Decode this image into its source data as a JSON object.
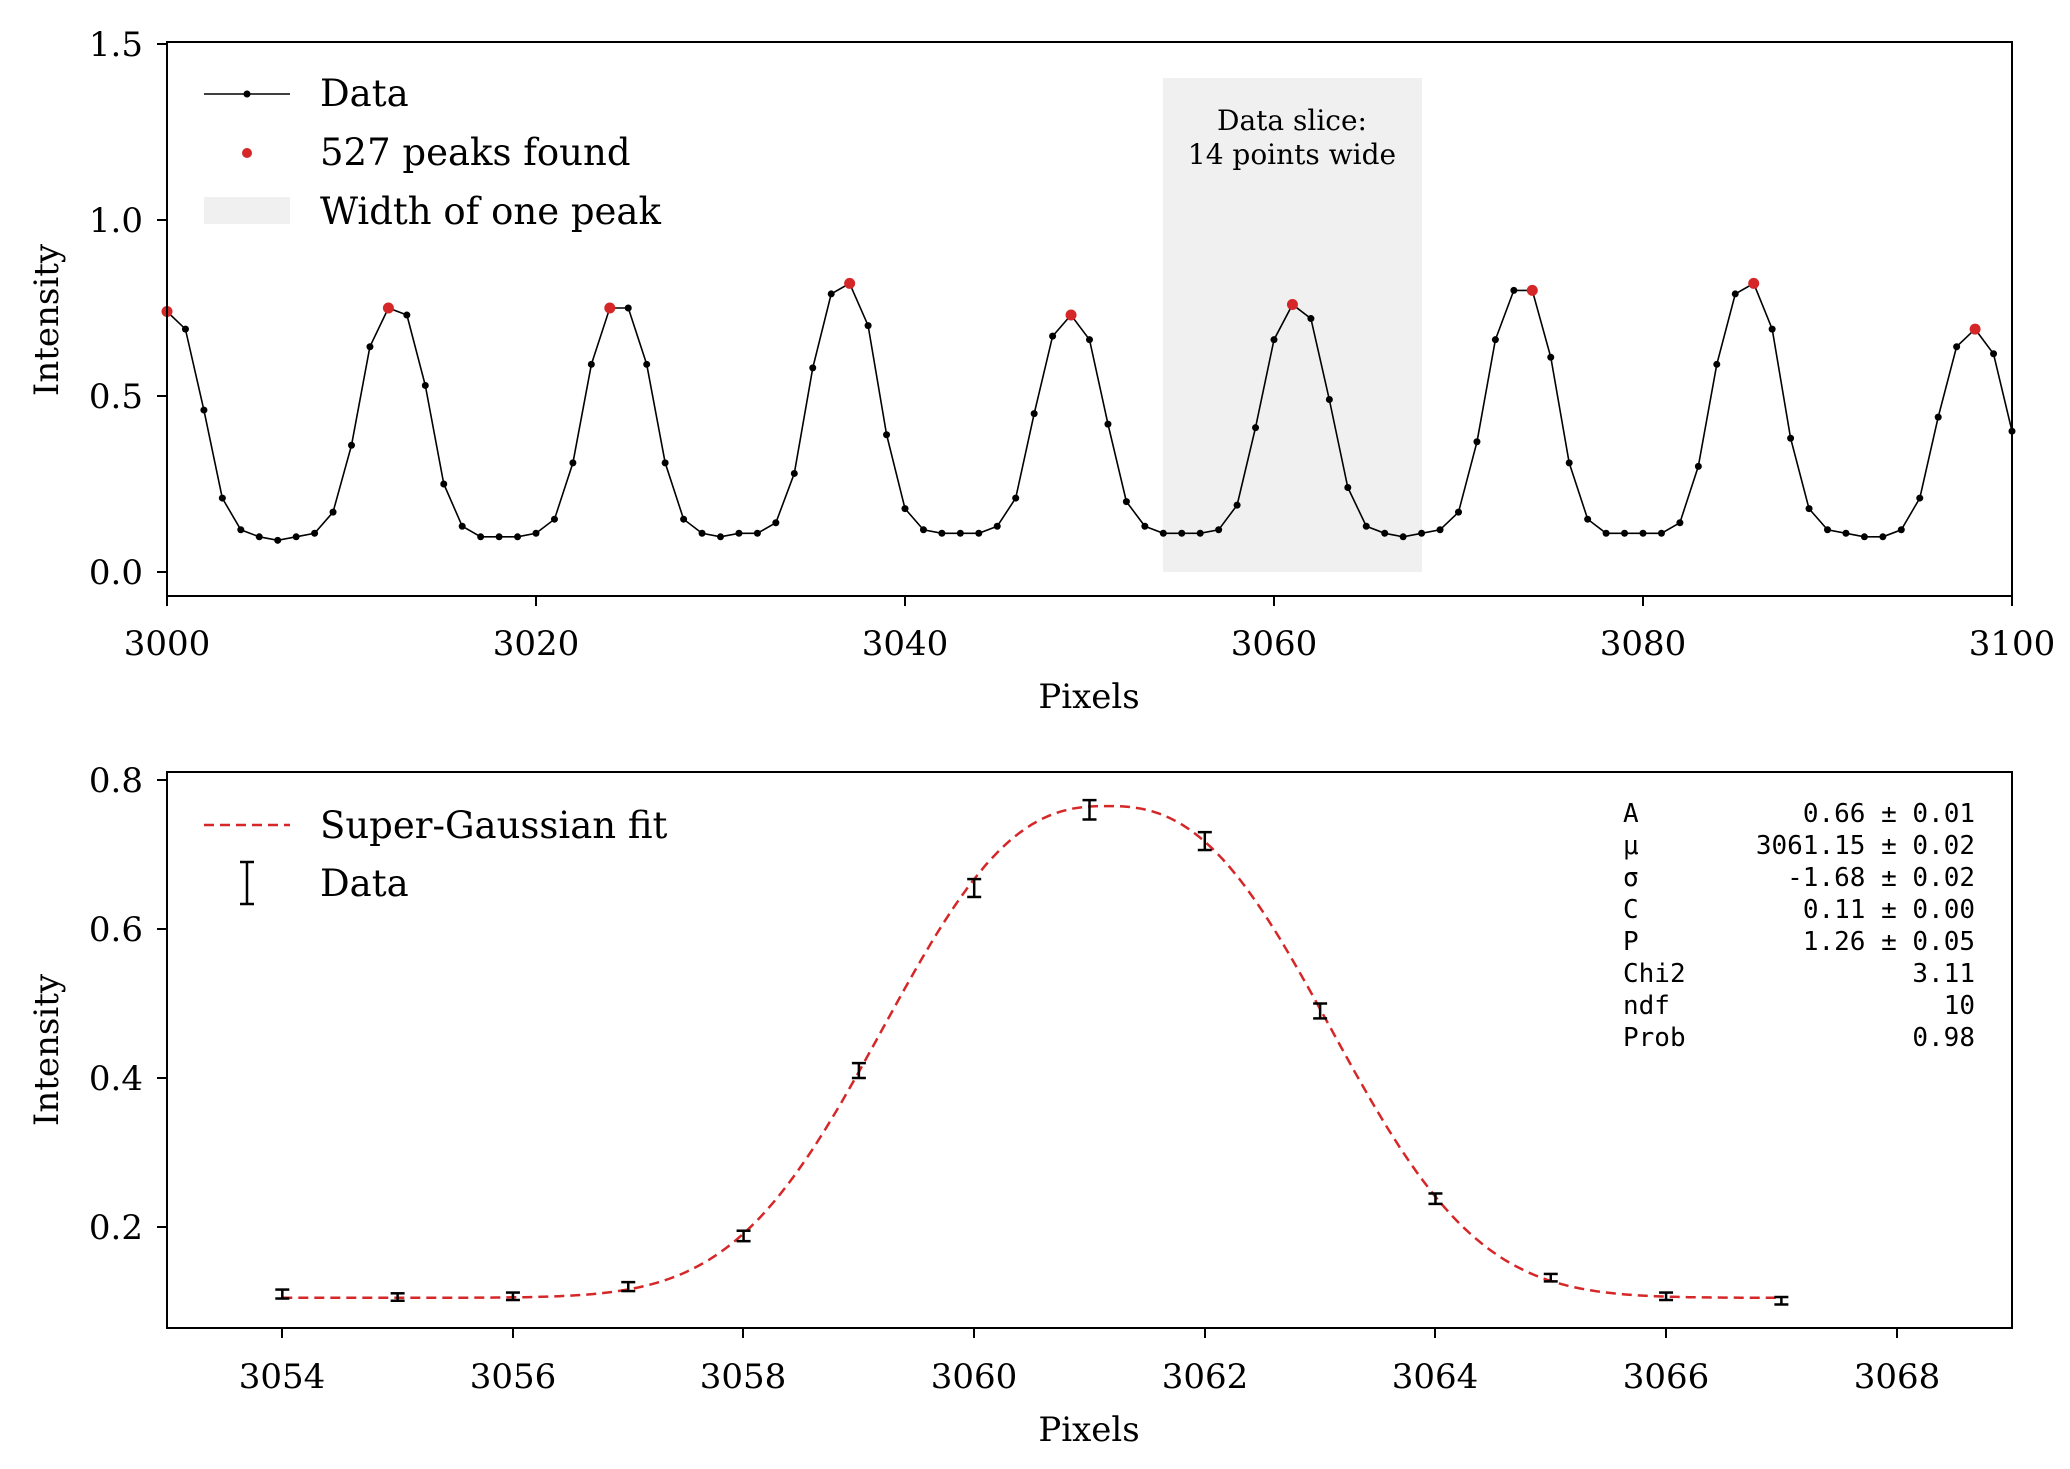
{
  "colors": {
    "data": "#000000",
    "peak": "#d62728",
    "fit": "#d62728",
    "band": "#f0f0f0"
  },
  "chart_data": [
    {
      "type": "line",
      "xlabel": "Pixels",
      "ylabel": "Intensity",
      "xlim": [
        3000,
        3100
      ],
      "ylim": [
        -0.07,
        1.5
      ],
      "xticks": [
        "3000",
        "3020",
        "3040",
        "3060",
        "3080",
        "3100"
      ],
      "yticks": [
        "0.0",
        "0.5",
        "1.0",
        "1.5"
      ],
      "grid": false,
      "legend_placement": "top-left",
      "legend": [
        "Data",
        "527 peaks found",
        "Width of one peak"
      ],
      "band": {
        "x0": 3054,
        "x1": 3068
      },
      "annotation": [
        "Data slice:",
        "14 points wide"
      ],
      "series": [
        {
          "name": "Data",
          "x": [
            3000,
            3001,
            3002,
            3003,
            3004,
            3005,
            3006,
            3007,
            3008,
            3009,
            3010,
            3011,
            3012,
            3013,
            3014,
            3015,
            3016,
            3017,
            3018,
            3019,
            3020,
            3021,
            3022,
            3023,
            3024,
            3025,
            3026,
            3027,
            3028,
            3029,
            3030,
            3031,
            3032,
            3033,
            3034,
            3035,
            3036,
            3037,
            3038,
            3039,
            3040,
            3041,
            3042,
            3043,
            3044,
            3045,
            3046,
            3047,
            3048,
            3049,
            3050,
            3051,
            3052,
            3053,
            3054,
            3055,
            3056,
            3057,
            3058,
            3059,
            3060,
            3061,
            3062,
            3063,
            3064,
            3065,
            3066,
            3067,
            3068,
            3069,
            3070,
            3071,
            3072,
            3073,
            3074,
            3075,
            3076,
            3077,
            3078,
            3079,
            3080,
            3081,
            3082,
            3083,
            3084,
            3085,
            3086,
            3087,
            3088,
            3089,
            3090,
            3091,
            3092,
            3093,
            3094,
            3095,
            3096,
            3097,
            3098,
            3099,
            3100
          ],
          "y": [
            0.74,
            0.69,
            0.46,
            0.21,
            0.12,
            0.1,
            0.09,
            0.1,
            0.11,
            0.17,
            0.36,
            0.64,
            0.75,
            0.73,
            0.53,
            0.25,
            0.13,
            0.1,
            0.1,
            0.1,
            0.11,
            0.15,
            0.31,
            0.59,
            0.75,
            0.75,
            0.59,
            0.31,
            0.15,
            0.11,
            0.1,
            0.11,
            0.11,
            0.14,
            0.28,
            0.58,
            0.79,
            0.82,
            0.7,
            0.39,
            0.18,
            0.12,
            0.11,
            0.11,
            0.11,
            0.13,
            0.21,
            0.45,
            0.67,
            0.73,
            0.66,
            0.42,
            0.2,
            0.13,
            0.11,
            0.11,
            0.11,
            0.12,
            0.19,
            0.41,
            0.66,
            0.76,
            0.72,
            0.49,
            0.24,
            0.13,
            0.11,
            0.1,
            0.11,
            0.12,
            0.17,
            0.37,
            0.66,
            0.8,
            0.8,
            0.61,
            0.31,
            0.15,
            0.11,
            0.11,
            0.11,
            0.11,
            0.14,
            0.3,
            0.59,
            0.79,
            0.82,
            0.69,
            0.38,
            0.18,
            0.12,
            0.11,
            0.1,
            0.1,
            0.12,
            0.21,
            0.44,
            0.64,
            0.69,
            0.62,
            0.4
          ]
        },
        {
          "name": "527 peaks found",
          "x": [
            3000,
            3012,
            3024,
            3037,
            3049,
            3061,
            3074,
            3086,
            3098
          ],
          "y": [
            0.74,
            0.75,
            0.75,
            0.82,
            0.73,
            0.76,
            0.8,
            0.82,
            0.69
          ]
        }
      ]
    },
    {
      "type": "line",
      "xlabel": "Pixels",
      "ylabel": "Intensity",
      "xlim": [
        3053,
        3069
      ],
      "ylim": [
        0.05,
        0.82
      ],
      "xticks": [
        "3054",
        "3056",
        "3058",
        "3060",
        "3062",
        "3064",
        "3066",
        "3068"
      ],
      "yticks": [
        "0.2",
        "0.4",
        "0.6",
        "0.8"
      ],
      "grid": false,
      "legend_placement": "top-left",
      "legend": [
        "Super-Gaussian fit",
        "Data"
      ],
      "fit_params": {
        "A": 0.66,
        "mu": 3061.15,
        "sigma": 1.68,
        "C": 0.105,
        "P": 1.26
      },
      "stats_box": [
        {
          "label": "A",
          "value": "0.66 ± 0.01"
        },
        {
          "label": "μ",
          "value": "3061.15 ± 0.02"
        },
        {
          "label": "σ",
          "value": "-1.68 ± 0.02"
        },
        {
          "label": "C",
          "value": "0.11 ± 0.00"
        },
        {
          "label": "P",
          "value": "1.26 ± 0.05"
        },
        {
          "label": "Chi2",
          "value": "3.11"
        },
        {
          "label": "ndf",
          "value": "10"
        },
        {
          "label": "Prob",
          "value": "0.98"
        }
      ],
      "series": [
        {
          "name": "Data",
          "x": [
            3054,
            3055,
            3056,
            3057,
            3058,
            3059,
            3060,
            3061,
            3062,
            3063,
            3064,
            3065,
            3066,
            3067
          ],
          "y": [
            0.11,
            0.106,
            0.107,
            0.12,
            0.188,
            0.41,
            0.655,
            0.76,
            0.718,
            0.49,
            0.238,
            0.132,
            0.107,
            0.101
          ],
          "err": [
            0.006,
            0.005,
            0.005,
            0.006,
            0.007,
            0.01,
            0.012,
            0.013,
            0.012,
            0.01,
            0.007,
            0.005,
            0.005,
            0.005
          ]
        }
      ]
    }
  ]
}
